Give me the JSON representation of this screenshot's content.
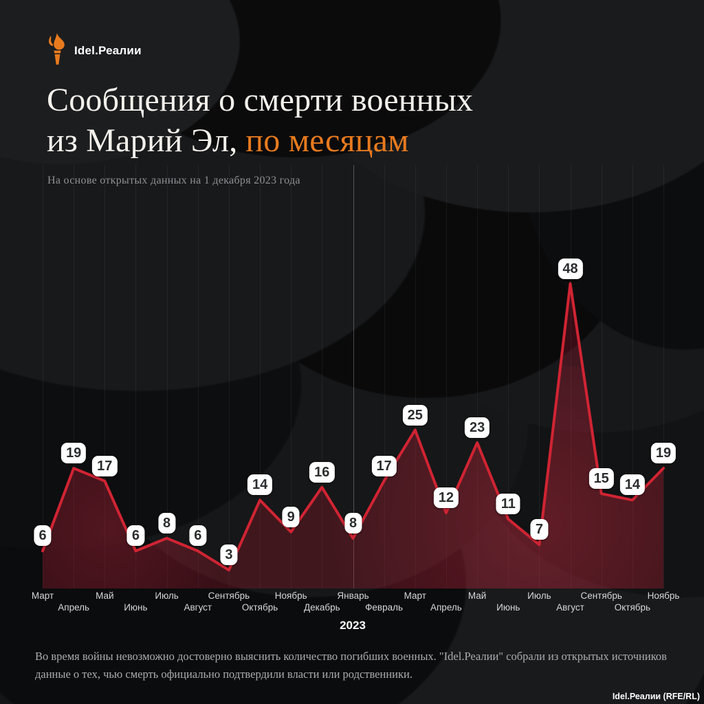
{
  "brand": {
    "logo_text": "Idel.Реалии",
    "torch_color": "#e87a1e"
  },
  "title": {
    "line1": "Сообщения о смерти военных",
    "line2_prefix": "из Марий Эл,",
    "line2_accent": "по месяцам"
  },
  "subtitle": "На основе открытых данных на 1 декабря 2023 года",
  "chart_data": {
    "type": "area",
    "title": "Сообщения о смерти военных из Марий Эл, по месяцам",
    "categories": [
      "Март",
      "Апрель",
      "Май",
      "Июнь",
      "Июль",
      "Август",
      "Сентябрь",
      "Октябрь",
      "Ноябрь",
      "Декабрь",
      "Январь",
      "Февраль",
      "Март",
      "Апрель",
      "Май",
      "Июнь",
      "Июль",
      "Август",
      "Сентябрь",
      "Октябрь",
      "Ноябрь"
    ],
    "values": [
      6,
      19,
      17,
      6,
      8,
      6,
      3,
      14,
      9,
      16,
      8,
      17,
      25,
      12,
      23,
      11,
      7,
      48,
      15,
      14,
      19
    ],
    "period": "Март 2022 — Ноябрь 2023",
    "year_divider": {
      "label": "2023",
      "category_index": 10
    },
    "ylim": [
      0,
      50
    ],
    "grid": "vertical",
    "legend": "none",
    "line_color": "#d02433",
    "fill_color": "rgba(166,23,46,0.30)",
    "label_bg": "#ffffff",
    "label_text_color": "#2b2d2e"
  },
  "footer": {
    "line1": "Во время войны невозможно достоверно выяснить количество погибших военных. \"Idel.Реалии\" собрали из открытых источников",
    "line2": "данные о тех, чью смерть официально подтвердили власти или родственники."
  },
  "credit": "Idel.Реалии (RFE/RL)"
}
